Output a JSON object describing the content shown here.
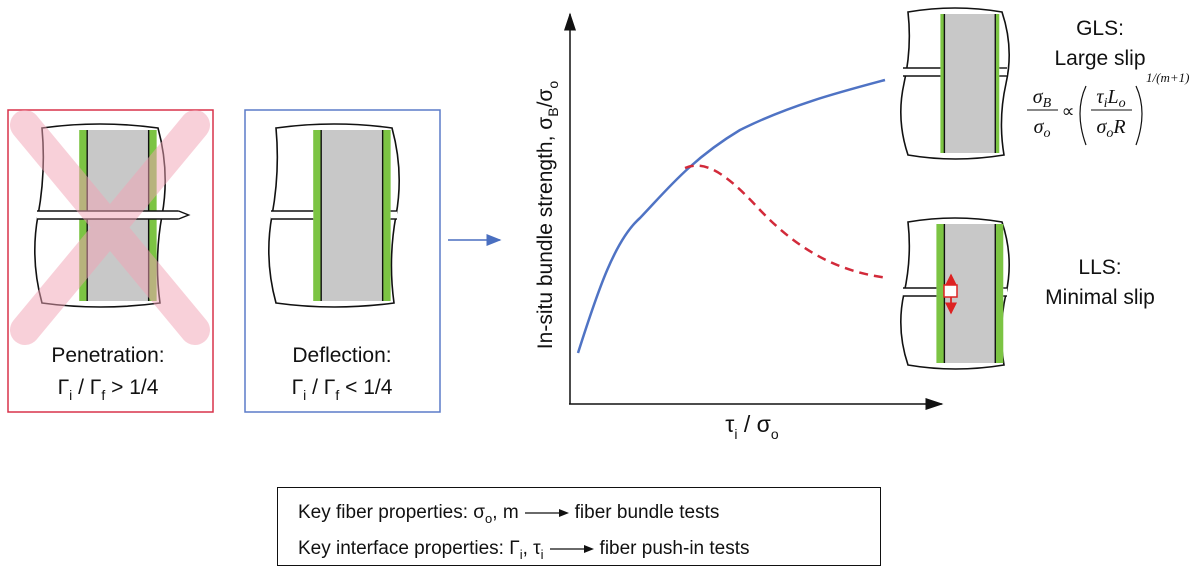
{
  "penetration": {
    "title": "Penetration:",
    "ratio": [
      "Γ",
      "i",
      " / Γ",
      "f",
      " > 1/4"
    ]
  },
  "deflection": {
    "title": "Deflection:",
    "ratio": [
      "Γ",
      "i",
      " / Γ",
      "f",
      " < 1/4"
    ]
  },
  "plot": {
    "y_label": [
      "In-situ bundle strength, σ",
      "B",
      "/σ",
      "o"
    ],
    "x_label": [
      "τ",
      "i",
      " / σ",
      "o"
    ]
  },
  "gls": {
    "title": "GLS:",
    "subtitle": "Large slip",
    "formula": {
      "lhs_num": [
        "σ",
        "B"
      ],
      "lhs_den": [
        "σ",
        "o"
      ],
      "relation": "∝",
      "rhs_num": [
        "τ",
        "i",
        "L",
        "o"
      ],
      "rhs_den": [
        "σ",
        "o",
        "R"
      ],
      "exponent": "1/(m+1)"
    }
  },
  "lls": {
    "title": "LLS:",
    "subtitle": "Minimal slip"
  },
  "key": {
    "fiber": {
      "label": [
        "Key fiber properties: σ",
        "o",
        ", m"
      ],
      "test": "fiber bundle tests"
    },
    "interface": {
      "label": [
        "Key interface properties: Γ",
        "i",
        ", τ",
        "i"
      ],
      "test": "fiber push-in tests"
    }
  }
}
